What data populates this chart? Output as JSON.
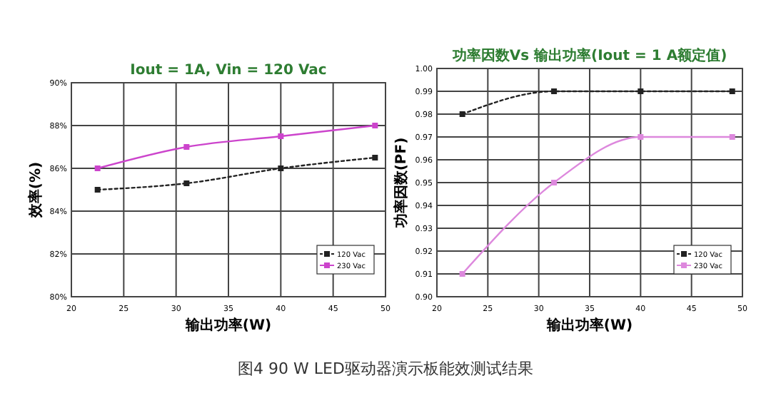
{
  "chart_data": [
    {
      "type": "line",
      "title": "Iout = 1A, Vin = 120 Vac",
      "xlabel": "输出功率(W)",
      "ylabel": "效率(%)",
      "annotations": [
        "图4 90 W LED驱动器演示板能效测试结果"
      ],
      "xlim": [
        20,
        50
      ],
      "xticks": [
        20,
        25,
        30,
        35,
        40,
        45,
        50
      ],
      "ylim": [
        80,
        90
      ],
      "yticks": [
        {
          "value": 80,
          "label": "80%"
        },
        {
          "value": 82,
          "label": "82%"
        },
        {
          "value": 84,
          "label": "84%"
        },
        {
          "value": 86,
          "label": "86%"
        },
        {
          "value": 88,
          "label": "88%"
        },
        {
          "value": 90,
          "label": "90%"
        }
      ],
      "grid": true,
      "legend": "bottom right",
      "marker": "square",
      "series": [
        {
          "name": "120 Vac",
          "color": "#222222",
          "line_style": "dotted",
          "x": [
            22.5,
            31,
            40,
            49
          ],
          "values": [
            85,
            85.3,
            86,
            86.5
          ]
        },
        {
          "name": "230 Vac",
          "color": "#cc44cc",
          "line_style": "solid",
          "x": [
            22.5,
            31,
            40,
            49
          ],
          "values": [
            86,
            87,
            87.5,
            88
          ]
        }
      ]
    },
    {
      "type": "line",
      "title": "功率因数Vs 输出功率(Iout = 1 A额定值)",
      "xlabel": "输出功率(W)",
      "ylabel": "功率因数(PF)",
      "xlim": [
        20,
        50
      ],
      "xticks": [
        20,
        25,
        30,
        35,
        40,
        45,
        50
      ],
      "ylim": [
        0.9,
        1
      ],
      "yticks": [
        {
          "value": 0.9,
          "label": "0.90"
        },
        {
          "value": 0.91,
          "label": "0.91"
        },
        {
          "value": 0.92,
          "label": "0.92"
        },
        {
          "value": 0.93,
          "label": "0.93"
        },
        {
          "value": 0.94,
          "label": "0.94"
        },
        {
          "value": 0.95,
          "label": "0.95"
        },
        {
          "value": 0.96,
          "label": "0.96"
        },
        {
          "value": 0.97,
          "label": "0.97"
        },
        {
          "value": 0.98,
          "label": "0.98"
        },
        {
          "value": 0.99,
          "label": "0.99"
        },
        {
          "value": 1,
          "label": "1.00"
        }
      ],
      "grid": true,
      "legend": "bottom right",
      "marker": "square",
      "series": [
        {
          "name": "120 Vac",
          "color": "#222222",
          "line_style": "dotted",
          "x": [
            22.5,
            31.5,
            40,
            49
          ],
          "values": [
            0.98,
            0.99,
            0.99,
            0.99
          ]
        },
        {
          "name": "230 Vac",
          "color": "#dd88dd",
          "line_style": "solid",
          "x": [
            22.5,
            31.5,
            40,
            49
          ],
          "values": [
            0.91,
            0.95,
            0.97,
            0.97
          ]
        }
      ]
    }
  ]
}
